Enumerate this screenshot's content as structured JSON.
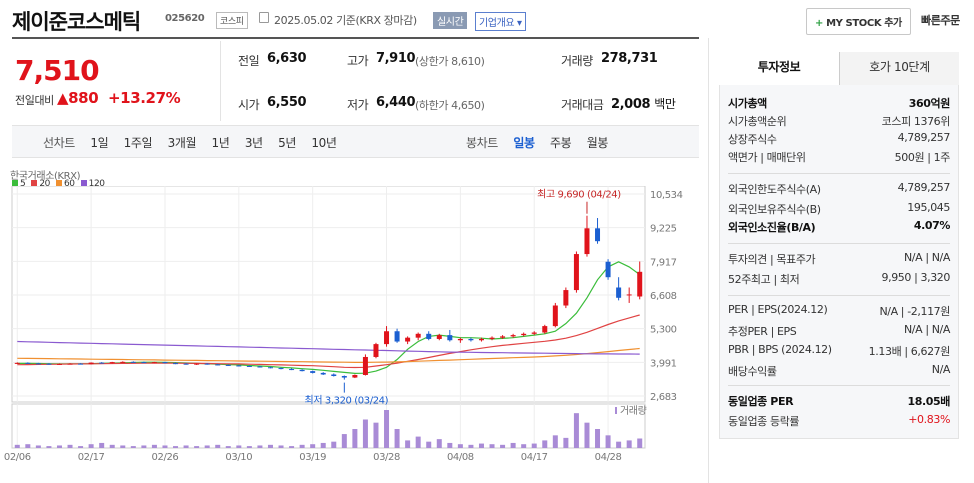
{
  "header": {
    "name": "제이준코스메틱",
    "code": "025620",
    "market": "코스피",
    "date_text": "2025.05.02 기준(KRX 장마감)",
    "realtime": "실시간",
    "company_overview": "기업개요",
    "mystock": "MY STOCK 추가",
    "quick_order": "빠른주문"
  },
  "price": {
    "current": "7,510",
    "change_label": "전일대비",
    "change": "880",
    "change_pct": "+13.27%"
  },
  "stats": {
    "prev_label": "전일",
    "prev": "6,630",
    "high_label": "고가",
    "high": "7,910",
    "upper_limit": "(상한가 8,610)",
    "volume_label": "거래량",
    "volume": "278,731",
    "open_label": "시가",
    "open": "6,550",
    "low_label": "저가",
    "low": "6,440",
    "lower_limit": "(하한가 4,650)",
    "amount_label": "거래대금",
    "amount": "2,008",
    "amount_unit": "백만"
  },
  "periods": {
    "line_label": "선차트",
    "items": [
      "1일",
      "1주일",
      "3개월",
      "1년",
      "3년",
      "5년",
      "10년"
    ],
    "candle_label": "봉차트",
    "candle_items": [
      "일봉",
      "주봉",
      "월봉"
    ]
  },
  "chart_data": {
    "type": "candlestick",
    "source": "한국거래소(KRX)",
    "legend": [
      {
        "name": "5",
        "color": "#3bbd3b"
      },
      {
        "name": "20",
        "color": "#e04343"
      },
      {
        "name": "60",
        "color": "#f09030"
      },
      {
        "name": "120",
        "color": "#8a5ad0"
      }
    ],
    "yticks": [
      "10,534",
      "9,225",
      "7,917",
      "6,608",
      "5,300",
      "3,991",
      "2,683"
    ],
    "yrange": [
      2683,
      10534
    ],
    "xticks": [
      "02/06",
      "02/17",
      "02/26",
      "03/10",
      "03/19",
      "03/28",
      "04/08",
      "04/17",
      "04/28"
    ],
    "high_annotation": "최고 9,690 (04/24)",
    "low_annotation": "최저 3,320 (03/24)",
    "volume_label": "거래량",
    "dates": [
      "02/06",
      "02/07",
      "02/10",
      "02/11",
      "02/12",
      "02/13",
      "02/14",
      "02/17",
      "02/18",
      "02/19",
      "02/20",
      "02/21",
      "02/24",
      "02/25",
      "02/26",
      "02/27",
      "02/28",
      "03/04",
      "03/05",
      "03/06",
      "03/07",
      "03/10",
      "03/11",
      "03/12",
      "03/13",
      "03/14",
      "03/17",
      "03/18",
      "03/19",
      "03/20",
      "03/21",
      "03/24",
      "03/25",
      "03/26",
      "03/27",
      "03/28",
      "03/31",
      "04/01",
      "04/02",
      "04/03",
      "04/04",
      "04/07",
      "04/08",
      "04/09",
      "04/10",
      "04/11",
      "04/14",
      "04/15",
      "04/16",
      "04/17",
      "04/18",
      "04/21",
      "04/22",
      "04/23",
      "04/24",
      "04/25",
      "04/28",
      "04/29",
      "04/30",
      "05/02"
    ],
    "ohlc": [
      [
        3960,
        3990,
        3930,
        3970
      ],
      [
        3970,
        3990,
        3940,
        3950
      ],
      [
        3950,
        3970,
        3920,
        3940
      ],
      [
        3940,
        3960,
        3900,
        3920
      ],
      [
        3920,
        3950,
        3900,
        3930
      ],
      [
        3930,
        3960,
        3910,
        3940
      ],
      [
        3940,
        3960,
        3910,
        3920
      ],
      [
        3920,
        3990,
        3910,
        3980
      ],
      [
        3980,
        4000,
        3950,
        3960
      ],
      [
        3960,
        4010,
        3950,
        4000
      ],
      [
        4000,
        4030,
        3980,
        4010
      ],
      [
        4010,
        4030,
        3990,
        4000
      ],
      [
        4000,
        4020,
        3970,
        3980
      ],
      [
        3980,
        4010,
        3960,
        4000
      ],
      [
        4000,
        4010,
        3950,
        3960
      ],
      [
        3960,
        3980,
        3920,
        3940
      ],
      [
        3940,
        3960,
        3900,
        3920
      ],
      [
        3920,
        3950,
        3890,
        3940
      ],
      [
        3940,
        3960,
        3900,
        3910
      ],
      [
        3910,
        3930,
        3880,
        3890
      ],
      [
        3890,
        3910,
        3860,
        3870
      ],
      [
        3870,
        3890,
        3840,
        3850
      ],
      [
        3850,
        3870,
        3820,
        3830
      ],
      [
        3830,
        3850,
        3790,
        3800
      ],
      [
        3800,
        3820,
        3760,
        3770
      ],
      [
        3770,
        3790,
        3720,
        3730
      ],
      [
        3730,
        3760,
        3690,
        3700
      ],
      [
        3700,
        3720,
        3640,
        3650
      ],
      [
        3650,
        3670,
        3560,
        3580
      ],
      [
        3580,
        3610,
        3500,
        3520
      ],
      [
        3520,
        3560,
        3440,
        3460
      ],
      [
        3460,
        3480,
        3320,
        3400
      ],
      [
        3400,
        3520,
        3380,
        3500
      ],
      [
        3500,
        4300,
        3480,
        4200
      ],
      [
        4200,
        4750,
        4150,
        4700
      ],
      [
        4700,
        5400,
        4600,
        5200
      ],
      [
        5200,
        5300,
        4750,
        4800
      ],
      [
        4800,
        5000,
        4700,
        4950
      ],
      [
        4950,
        5150,
        4850,
        5100
      ],
      [
        5100,
        5200,
        4850,
        4900
      ],
      [
        4900,
        5100,
        4850,
        5050
      ],
      [
        5050,
        5250,
        4800,
        4850
      ],
      [
        4850,
        4950,
        4750,
        4900
      ],
      [
        4900,
        4950,
        4800,
        4850
      ],
      [
        4850,
        4950,
        4800,
        4900
      ],
      [
        4900,
        5000,
        4850,
        4950
      ],
      [
        4950,
        5050,
        4900,
        5000
      ],
      [
        5000,
        5100,
        4950,
        5050
      ],
      [
        5050,
        5150,
        5000,
        5100
      ],
      [
        5100,
        5200,
        5050,
        5150
      ],
      [
        5150,
        5450,
        5100,
        5400
      ],
      [
        5400,
        6300,
        5350,
        6200
      ],
      [
        6200,
        6900,
        6100,
        6800
      ],
      [
        6800,
        8300,
        6700,
        8200
      ],
      [
        8200,
        9690,
        8100,
        9200
      ],
      [
        9200,
        9600,
        8600,
        8700
      ],
      [
        7900,
        8000,
        7200,
        7300
      ],
      [
        6900,
        7300,
        6400,
        6500
      ],
      [
        6600,
        6900,
        6300,
        6630
      ],
      [
        6550,
        7910,
        6440,
        7510
      ]
    ],
    "volume": [
      5,
      6,
      4,
      3,
      4,
      5,
      3,
      6,
      8,
      5,
      4,
      3,
      4,
      5,
      4,
      3,
      4,
      3,
      4,
      5,
      3,
      4,
      3,
      4,
      5,
      4,
      3,
      5,
      6,
      8,
      10,
      22,
      30,
      45,
      40,
      60,
      30,
      12,
      18,
      10,
      14,
      8,
      6,
      5,
      7,
      6,
      5,
      8,
      6,
      7,
      12,
      20,
      16,
      55,
      40,
      30,
      20,
      10,
      12,
      15
    ],
    "ma": [
      {
        "name": "5",
        "color": "#3bbd3b",
        "values": [
          3950,
          3950,
          3945,
          3940,
          3935,
          3930,
          3935,
          3940,
          3950,
          3960,
          3975,
          3985,
          3995,
          3995,
          3990,
          3980,
          3965,
          3950,
          3935,
          3920,
          3905,
          3890,
          3870,
          3850,
          3830,
          3800,
          3775,
          3745,
          3715,
          3680,
          3640,
          3600,
          3560,
          3570,
          3650,
          3800,
          4100,
          4500,
          4800,
          5000,
          5050,
          5000,
          4950,
          4950,
          4930,
          4900,
          4920,
          4950,
          5000,
          5050,
          5100,
          5200,
          5500,
          5900,
          6500,
          7200,
          7700,
          7900,
          7700,
          7400
        ]
      },
      {
        "name": "20",
        "color": "#e04343",
        "values": [
          3900,
          3905,
          3910,
          3915,
          3920,
          3925,
          3930,
          3935,
          3940,
          3945,
          3950,
          3955,
          3960,
          3960,
          3960,
          3958,
          3955,
          3950,
          3945,
          3940,
          3935,
          3930,
          3920,
          3910,
          3900,
          3890,
          3880,
          3870,
          3860,
          3840,
          3820,
          3800,
          3790,
          3800,
          3850,
          3900,
          3960,
          4030,
          4100,
          4180,
          4260,
          4340,
          4410,
          4480,
          4540,
          4600,
          4650,
          4690,
          4730,
          4770,
          4810,
          4860,
          4930,
          5030,
          5160,
          5310,
          5460,
          5600,
          5720,
          5830
        ]
      },
      {
        "name": "60",
        "color": "#f09030",
        "values": [
          4150,
          4145,
          4140,
          4135,
          4130,
          4125,
          4120,
          4115,
          4110,
          4105,
          4100,
          4095,
          4090,
          4085,
          4080,
          4075,
          4070,
          4065,
          4060,
          4055,
          4050,
          4045,
          4040,
          4035,
          4030,
          4025,
          4020,
          4015,
          4010,
          4005,
          4000,
          3995,
          3990,
          3990,
          3995,
          4000,
          4010,
          4020,
          4035,
          4050,
          4065,
          4080,
          4095,
          4110,
          4125,
          4140,
          4155,
          4170,
          4185,
          4200,
          4220,
          4240,
          4265,
          4295,
          4330,
          4370,
          4410,
          4450,
          4490,
          4530
        ]
      },
      {
        "name": "120",
        "color": "#8a5ad0",
        "values": [
          4800,
          4790,
          4780,
          4770,
          4760,
          4750,
          4740,
          4730,
          4720,
          4710,
          4700,
          4690,
          4680,
          4670,
          4660,
          4650,
          4640,
          4630,
          4620,
          4610,
          4600,
          4590,
          4580,
          4570,
          4560,
          4550,
          4540,
          4530,
          4520,
          4510,
          4500,
          4490,
          4480,
          4470,
          4460,
          4450,
          4440,
          4430,
          4420,
          4410,
          4400,
          4390,
          4385,
          4380,
          4375,
          4370,
          4365,
          4360,
          4355,
          4350,
          4345,
          4340,
          4335,
          4330,
          4325,
          4320,
          4318,
          4316,
          4314,
          4312
        ]
      }
    ]
  },
  "right": {
    "tabs": [
      "투자정보",
      "호가 10단계"
    ],
    "rows": [
      {
        "label": "시가총액",
        "value": "360억원",
        "bold": true
      },
      {
        "label": "시가총액순위",
        "value": "코스피 1376위"
      },
      {
        "label": "상장주식수",
        "value": "4,789,257"
      },
      {
        "label": "액면가 | 매매단위",
        "value": "500원 | 1주"
      },
      {
        "label": "외국인한도주식수(A)",
        "value": "4,789,257"
      },
      {
        "label": "외국인보유주식수(B)",
        "value": "195,045"
      },
      {
        "label": "외국인소진율(B/A)",
        "value": "4.07%",
        "bold": true
      },
      {
        "label": "투자의견 | 목표주가",
        "value": "N/A | N/A"
      },
      {
        "label": "52주최고 | 최저",
        "value": "9,950 | 3,320"
      },
      {
        "label": "PER | EPS(2024.12)",
        "value": "N/A | -2,117원"
      },
      {
        "label": "추정PER | EPS",
        "value": "N/A | N/A"
      },
      {
        "label": "PBR | BPS (2024.12)",
        "value": "1.13배 | 6,627원"
      },
      {
        "label": "배당수익률",
        "value": "N/A"
      },
      {
        "label": "동일업종 PER",
        "value": "18.05배",
        "bold": true
      },
      {
        "label": "동일업종 등락률",
        "value": "+0.83%",
        "red": true
      }
    ]
  }
}
